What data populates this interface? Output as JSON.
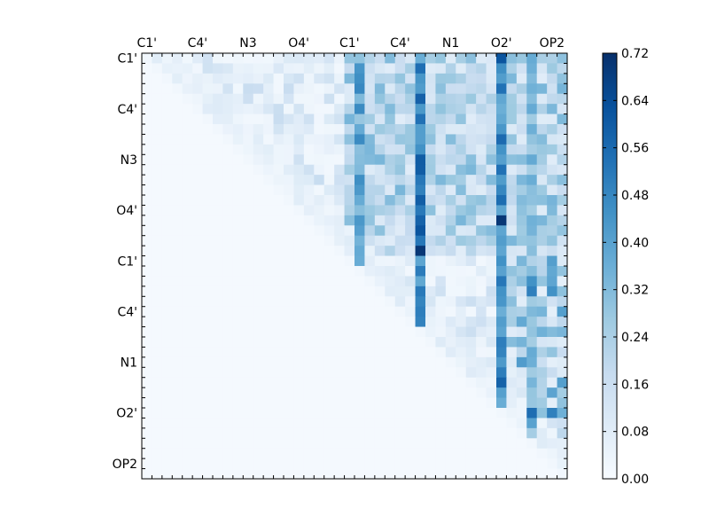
{
  "chart_data": {
    "type": "heatmap",
    "title": "",
    "xlabel": "",
    "ylabel": "",
    "n": 42,
    "x_tick_labels": [
      "C1'",
      "C4'",
      "N3",
      "O4'",
      "C1'",
      "C4'",
      "N1",
      "O2'",
      "OP2"
    ],
    "x_tick_cells": [
      0,
      5,
      10,
      15,
      20,
      25,
      30,
      35,
      40
    ],
    "y_tick_labels": [
      "C1'",
      "C4'",
      "N3",
      "O4'",
      "C1'",
      "C4'",
      "N1",
      "O2'",
      "OP2"
    ],
    "y_tick_cells": [
      0,
      5,
      10,
      15,
      20,
      25,
      30,
      35,
      40
    ],
    "colorbar": {
      "min": 0.0,
      "max": 0.72,
      "tick_values": [
        0.0,
        0.08,
        0.16,
        0.24,
        0.32,
        0.4,
        0.48,
        0.56,
        0.64,
        0.72
      ],
      "tick_labels": [
        "0.00",
        "0.08",
        "0.16",
        "0.24",
        "0.32",
        "0.40",
        "0.48",
        "0.56",
        "0.64",
        "0.72"
      ],
      "colormap": "Blues",
      "colors": [
        "#f7fbff",
        "#deebf7",
        "#c6dbef",
        "#9ecae1",
        "#6baed6",
        "#4292c6",
        "#2171b5",
        "#08519c",
        "#08306b"
      ]
    },
    "strong_columns": [
      {
        "col": 21,
        "value": 0.46
      },
      {
        "col": 27,
        "value": 0.58
      },
      {
        "col": 35,
        "value": 0.58
      },
      {
        "col": 38,
        "value": 0.36
      }
    ],
    "strong_cells": [
      {
        "row": 0,
        "col": 35,
        "value": 0.62
      },
      {
        "row": 16,
        "col": 35,
        "value": 0.7
      },
      {
        "row": 17,
        "col": 27,
        "value": 0.62
      },
      {
        "row": 19,
        "col": 27,
        "value": 0.7
      },
      {
        "row": 16,
        "col": 27,
        "value": 0.58
      },
      {
        "row": 22,
        "col": 38,
        "value": 0.45
      },
      {
        "row": 23,
        "col": 38,
        "value": 0.5
      },
      {
        "row": 23,
        "col": 40,
        "value": 0.45
      },
      {
        "row": 35,
        "col": 38,
        "value": 0.55
      },
      {
        "row": 35,
        "col": 40,
        "value": 0.5
      },
      {
        "row": 36,
        "col": 38,
        "value": 0.4
      }
    ]
  }
}
